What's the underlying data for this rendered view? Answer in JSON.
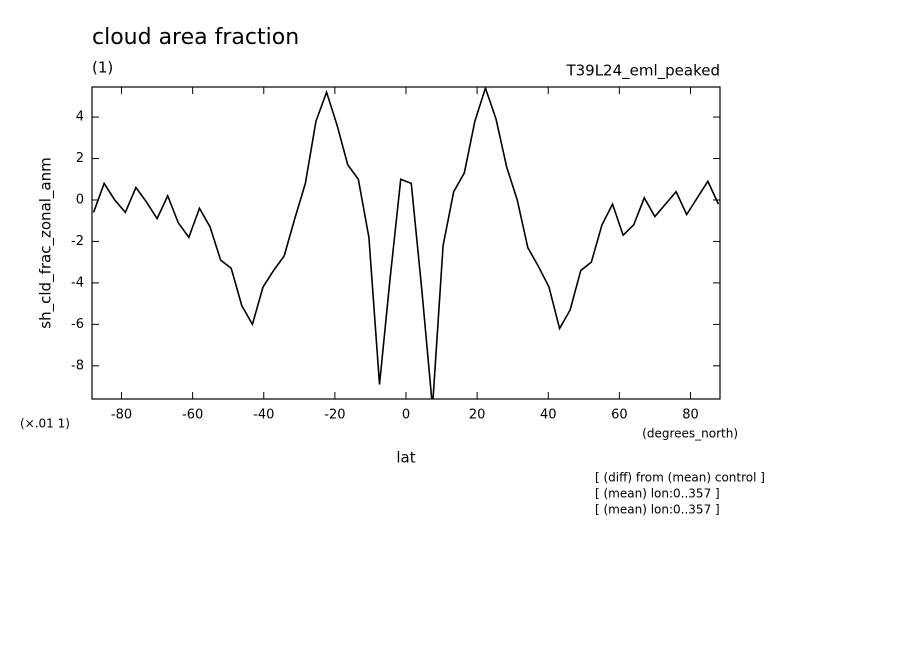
{
  "chart_data": {
    "type": "line",
    "title": "cloud area fraction",
    "subtitle": "(1)",
    "experiment": "T39L24_eml_peaked",
    "ylabel": "sh_cld_frac_zonal_anm",
    "yscale_note": "(×.01 1)",
    "xunits": "(degrees_north)",
    "xlabel": "lat",
    "notes": [
      "[ (diff) from (mean) control ]",
      "[ (mean) lon:0..357 ]",
      "[ (mean) lon:0..357 ]"
    ],
    "xlim": [
      -88.3,
      88.3
    ],
    "ylim": [
      -9.6,
      5.45
    ],
    "xticks": [
      -80,
      -60,
      -40,
      -20,
      0,
      20,
      40,
      60,
      80
    ],
    "yticks": [
      -8,
      -6,
      -4,
      -2,
      0,
      2,
      4
    ],
    "x": [
      -87.86,
      -84.88,
      -81.9,
      -78.93,
      -75.95,
      -72.97,
      -69.99,
      -67.01,
      -64.04,
      -61.06,
      -58.08,
      -55.1,
      -52.12,
      -49.15,
      -46.17,
      -43.19,
      -40.21,
      -37.23,
      -34.26,
      -31.28,
      -28.3,
      -25.32,
      -22.34,
      -19.37,
      -16.39,
      -13.41,
      -10.43,
      -7.45,
      -4.48,
      -1.48,
      1.48,
      4.48,
      7.45,
      10.43,
      13.41,
      16.39,
      19.37,
      22.34,
      25.32,
      28.3,
      31.28,
      34.26,
      37.23,
      40.21,
      43.19,
      46.17,
      49.15,
      52.12,
      55.1,
      58.08,
      61.06,
      64.04,
      67.01,
      69.99,
      72.97,
      75.95,
      78.93,
      81.9,
      84.88,
      87.86
    ],
    "series": [
      {
        "color": "#000000",
        "values": [
          -0.6,
          0.8,
          0.0,
          -0.6,
          0.6,
          -0.1,
          -0.9,
          0.2,
          -1.1,
          -1.8,
          -0.4,
          -1.3,
          -2.9,
          -3.3,
          -5.1,
          -6.0,
          -4.2,
          -3.4,
          -2.7,
          -0.9,
          0.8,
          3.8,
          5.2,
          3.6,
          1.7,
          1.0,
          -1.8,
          -8.9,
          -3.8,
          1.0,
          0.8,
          -4.4,
          -10.0,
          -2.2,
          0.4,
          1.3,
          3.8,
          5.4,
          3.9,
          1.6,
          0.0,
          -2.3,
          -3.2,
          -4.2,
          -6.2,
          -5.3,
          -3.4,
          -3.0,
          -1.2,
          -0.2,
          -1.7,
          -1.2,
          0.1,
          -0.8,
          -0.2,
          0.4,
          -0.7,
          0.1,
          0.9,
          -0.2
        ]
      }
    ]
  }
}
